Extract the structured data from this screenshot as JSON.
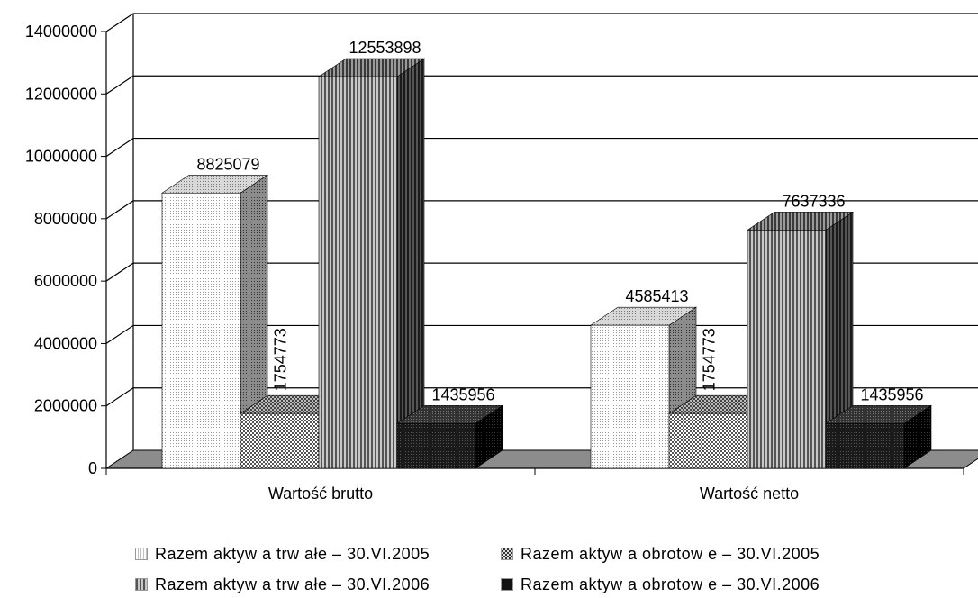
{
  "chart_data": {
    "type": "bar",
    "title": "",
    "xlabel": "",
    "ylabel": "",
    "ylim": [
      0,
      14000000
    ],
    "yticks": [
      "0",
      "2000000",
      "4000000",
      "6000000",
      "8000000",
      "10000000",
      "12000000",
      "14000000"
    ],
    "grid": true,
    "legend_position": "bottom",
    "categories": [
      "Wartość brutto",
      "Wartość netto"
    ],
    "series": [
      {
        "name": "Razem aktyw a trw ałe – 30.VI.2005",
        "values": [
          8825079,
          4585413
        ],
        "labels": [
          "8825079",
          "4585413"
        ],
        "pattern": "light-dots",
        "color": "#f2f2f2"
      },
      {
        "name": "Razem aktyw a obrotow e – 30.VI.2005",
        "values": [
          1754773,
          1754773
        ],
        "labels": [
          "1754773",
          "1754773"
        ],
        "pattern": "checker",
        "color": "#9a9a9a"
      },
      {
        "name": "Razem aktyw a trw ałe – 30.VI.2006",
        "values": [
          12553898,
          7637336
        ],
        "labels": [
          "12553898",
          "7637336"
        ],
        "pattern": "vertical-stripes",
        "color": "#8a8a8a"
      },
      {
        "name": "Razem aktyw a obrotow e – 30.VI.2006",
        "values": [
          1435956,
          1435956
        ],
        "labels": [
          "1435956",
          "1435956"
        ],
        "pattern": "dark",
        "color": "#111111"
      }
    ]
  }
}
